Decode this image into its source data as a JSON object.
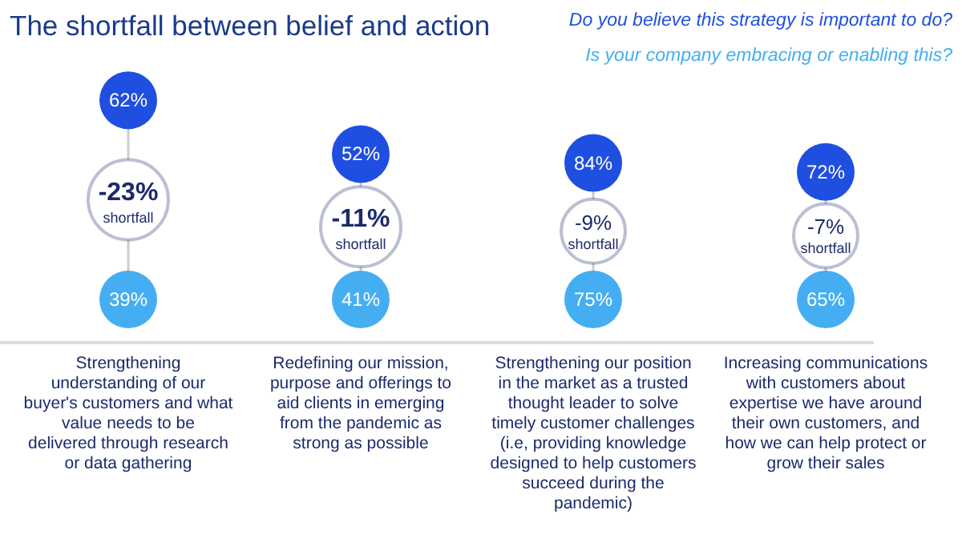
{
  "chart_data": {
    "type": "other",
    "title": "The shortfall between belief and action",
    "legend": "top right",
    "categories": [
      "Strengthening understanding of our buyer's customers and what value needs to be delivered through research or data gathering",
      "Redefining our mission, purpose and offerings to aid clients in emerging from the pandemic as strong as possible",
      "Strengthening our position in the market as a trusted thought leader to solve timely customer challenges (i.e, providing knowledge designed to help customers succeed during the pandemic)",
      "Increasing communications with customers about expertise we have around their own customers, and how we can help protect or grow their sales"
    ],
    "series": [
      {
        "name": "Do you believe this strategy is important to do?",
        "color": "#1f4fe0",
        "values": [
          62,
          52,
          84,
          72
        ],
        "value_labels": [
          "62%",
          "52%",
          "84%",
          "72%"
        ]
      },
      {
        "name": "Is your company embracing or enabling this?",
        "color": "#45aef2",
        "values": [
          39,
          41,
          75,
          65
        ],
        "value_labels": [
          "39%",
          "41%",
          "75%",
          "65%"
        ]
      },
      {
        "name": "shortfall",
        "color": "#1b2a6b",
        "values": [
          -23,
          -11,
          -9,
          -7
        ],
        "value_labels": [
          "-23%",
          "-11%",
          "-9%",
          "-7%"
        ]
      }
    ]
  }
}
